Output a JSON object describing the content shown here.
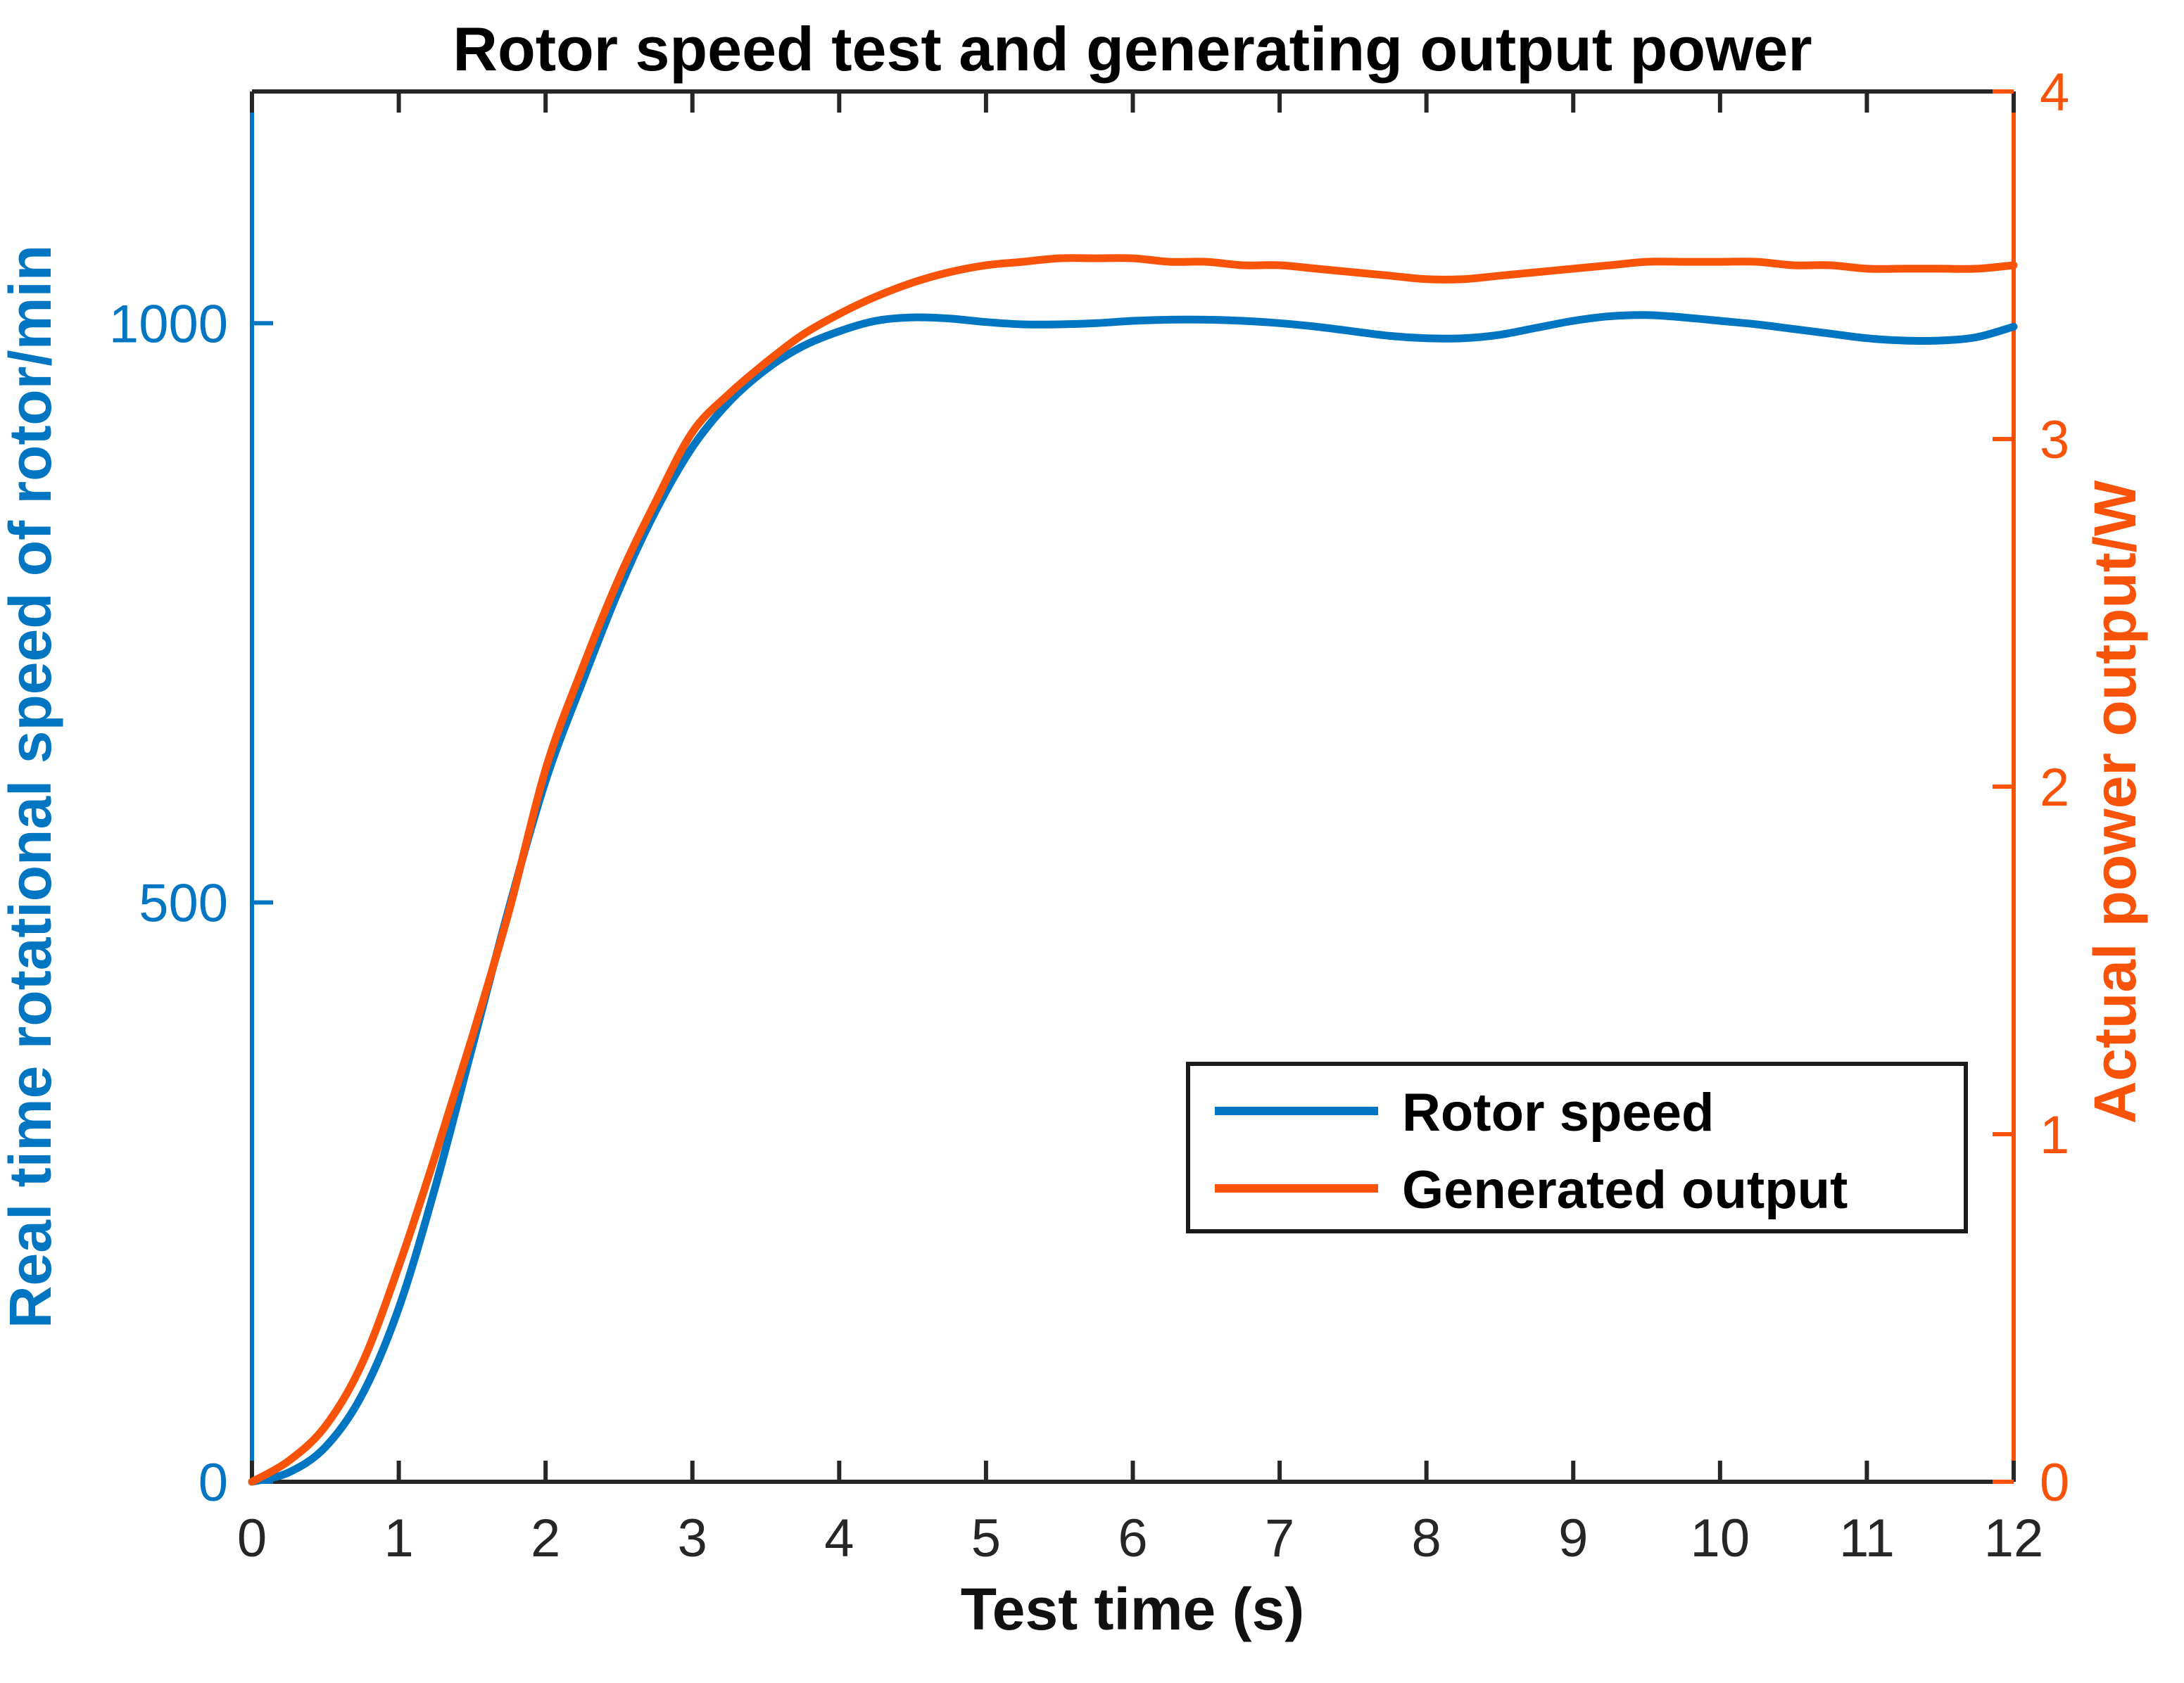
{
  "figure_background": "#ffffff",
  "axis_frame_color": "#262626",
  "chart_data": {
    "type": "line",
    "title": "Rotor speed test and generating output power",
    "xlabel": "Test time (s)",
    "grid": false,
    "legend_position": "inside-lower-right",
    "xlim": [
      0,
      12
    ],
    "xticks": [
      0,
      1,
      2,
      3,
      4,
      5,
      6,
      7,
      8,
      9,
      10,
      11,
      12
    ],
    "left_axis": {
      "label": "Real time rotational speed of rotor/min",
      "color": "#0075C2",
      "lim": [
        0,
        1200
      ],
      "ticks": [
        0,
        500,
        1000
      ]
    },
    "right_axis": {
      "label": "Actual power output/W",
      "color": "#F85308",
      "lim": [
        0,
        4
      ],
      "ticks": [
        0,
        1,
        2,
        3,
        4
      ]
    },
    "x": [
      0,
      0.25,
      0.5,
      0.75,
      1,
      1.25,
      1.5,
      1.75,
      2,
      2.25,
      2.5,
      2.75,
      3,
      3.25,
      3.5,
      3.75,
      4,
      4.25,
      4.5,
      4.75,
      5,
      5.25,
      5.5,
      5.75,
      6,
      6.25,
      6.5,
      6.75,
      7,
      7.25,
      7.5,
      7.75,
      8,
      8.25,
      8.5,
      8.75,
      9,
      9.25,
      9.5,
      9.75,
      10,
      10.25,
      10.5,
      10.75,
      11,
      11.25,
      11.5,
      11.75,
      12
    ],
    "series": [
      {
        "name": "Rotor speed",
        "axis": "left",
        "units": "rpm",
        "color": "#0075C2",
        "values": [
          0,
          8,
          30,
          75,
          150,
          255,
          375,
          495,
          605,
          690,
          770,
          838,
          893,
          932,
          960,
          980,
          993,
          1002,
          1005,
          1004,
          1001,
          999,
          999,
          1000,
          1002,
          1003,
          1003,
          1002,
          1000,
          997,
          993,
          989,
          987,
          987,
          990,
          996,
          1002,
          1006,
          1007,
          1005,
          1002,
          999,
          995,
          991,
          987,
          985,
          985,
          988,
          997
        ]
      },
      {
        "name": "Generated output",
        "axis": "right",
        "units": "W",
        "color": "#F85308",
        "values": [
          0,
          0.06,
          0.16,
          0.34,
          0.62,
          0.94,
          1.28,
          1.64,
          2.05,
          2.34,
          2.6,
          2.82,
          3.02,
          3.13,
          3.22,
          3.3,
          3.36,
          3.41,
          3.45,
          3.48,
          3.5,
          3.51,
          3.52,
          3.52,
          3.52,
          3.51,
          3.51,
          3.5,
          3.5,
          3.49,
          3.48,
          3.47,
          3.46,
          3.46,
          3.47,
          3.48,
          3.49,
          3.5,
          3.51,
          3.51,
          3.51,
          3.51,
          3.5,
          3.5,
          3.49,
          3.49,
          3.49,
          3.49,
          3.5
        ]
      }
    ]
  }
}
